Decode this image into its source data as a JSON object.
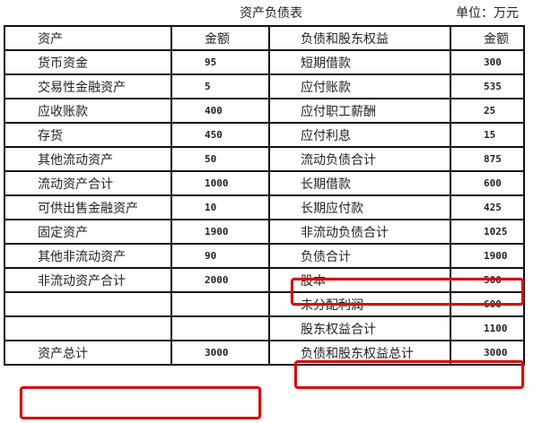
{
  "title": "资产负债表",
  "unit": "单位：万元",
  "header": [
    "资产",
    "金额",
    "负债和股东权益",
    "金额"
  ],
  "rows": [
    [
      "货币资金",
      "95",
      "短期借款",
      "300"
    ],
    [
      "交易性金融资产",
      "5",
      "应付账款",
      "535"
    ],
    [
      "应收账款",
      "400",
      "应付职工薪酬",
      "25"
    ],
    [
      "存货",
      "450",
      "应付利息",
      "15"
    ],
    [
      "其他流动资产",
      "50",
      "流动负债合计",
      "875"
    ],
    [
      "流动资产合计",
      "1000",
      "长期借款",
      "600"
    ],
    [
      "可供出售金融资产",
      "10",
      "长期应付款",
      "425"
    ],
    [
      "固定资产",
      "1900",
      "非流动负债合计",
      "1025"
    ],
    [
      "其他非流动资产",
      "90",
      "负债合计",
      "1900"
    ],
    [
      "非流动资产合计",
      "2000",
      "股本",
      "500"
    ],
    [
      "",
      "",
      "未分配利润",
      "600"
    ],
    [
      "",
      "",
      "股东权益合计",
      "1100"
    ],
    [
      "资产总计",
      "3000",
      "负债和股东权益总计",
      "3000"
    ]
  ],
  "highlight_color": "#d11111",
  "highlighted": [
    "负债合计",
    "股东权益合计",
    "资产总计"
  ]
}
